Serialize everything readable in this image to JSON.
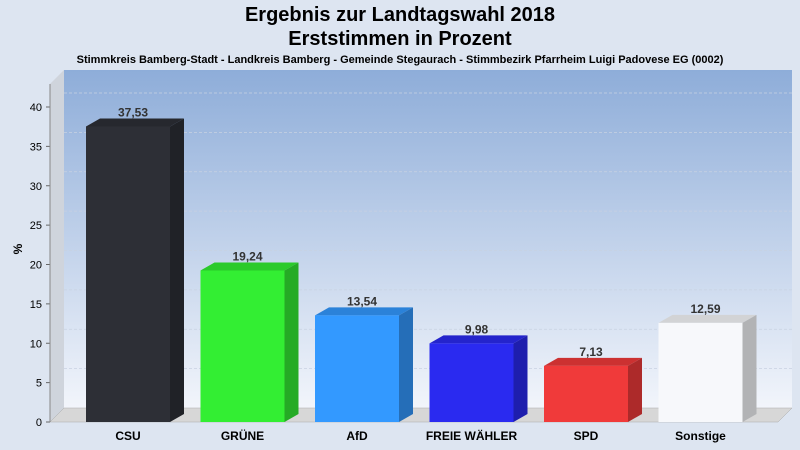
{
  "chart_data": {
    "type": "bar",
    "title": "Ergebnis zur Landtagswahl 2018",
    "subtitle_line": "Erststimmen in Prozent",
    "subtitle": "Stimmkreis Bamberg-Stadt - Landkreis Bamberg - Gemeinde Stegaurach - Stimmbezirk Pfarrheim Luigi Padovese EG (0002)",
    "ylabel": "%",
    "xlabel": "",
    "ylim": [
      0,
      40
    ],
    "yticks": [
      0,
      5,
      10,
      15,
      20,
      25,
      30,
      35,
      40
    ],
    "categories": [
      "CSU",
      "GRÜNE",
      "AfD",
      "FREIE WÄHLER",
      "SPD",
      "Sonstige"
    ],
    "values": [
      37.53,
      19.24,
      13.54,
      9.98,
      7.13,
      12.59
    ],
    "value_labels": [
      "37,53",
      "19,24",
      "13,54",
      "9,98",
      "7,13",
      "12,59"
    ],
    "colors": [
      "#2d2f36",
      "#33ee33",
      "#3399ff",
      "#2a2af0",
      "#f03a3a",
      "#f7f8fb"
    ],
    "grid": true,
    "legend": "none"
  }
}
